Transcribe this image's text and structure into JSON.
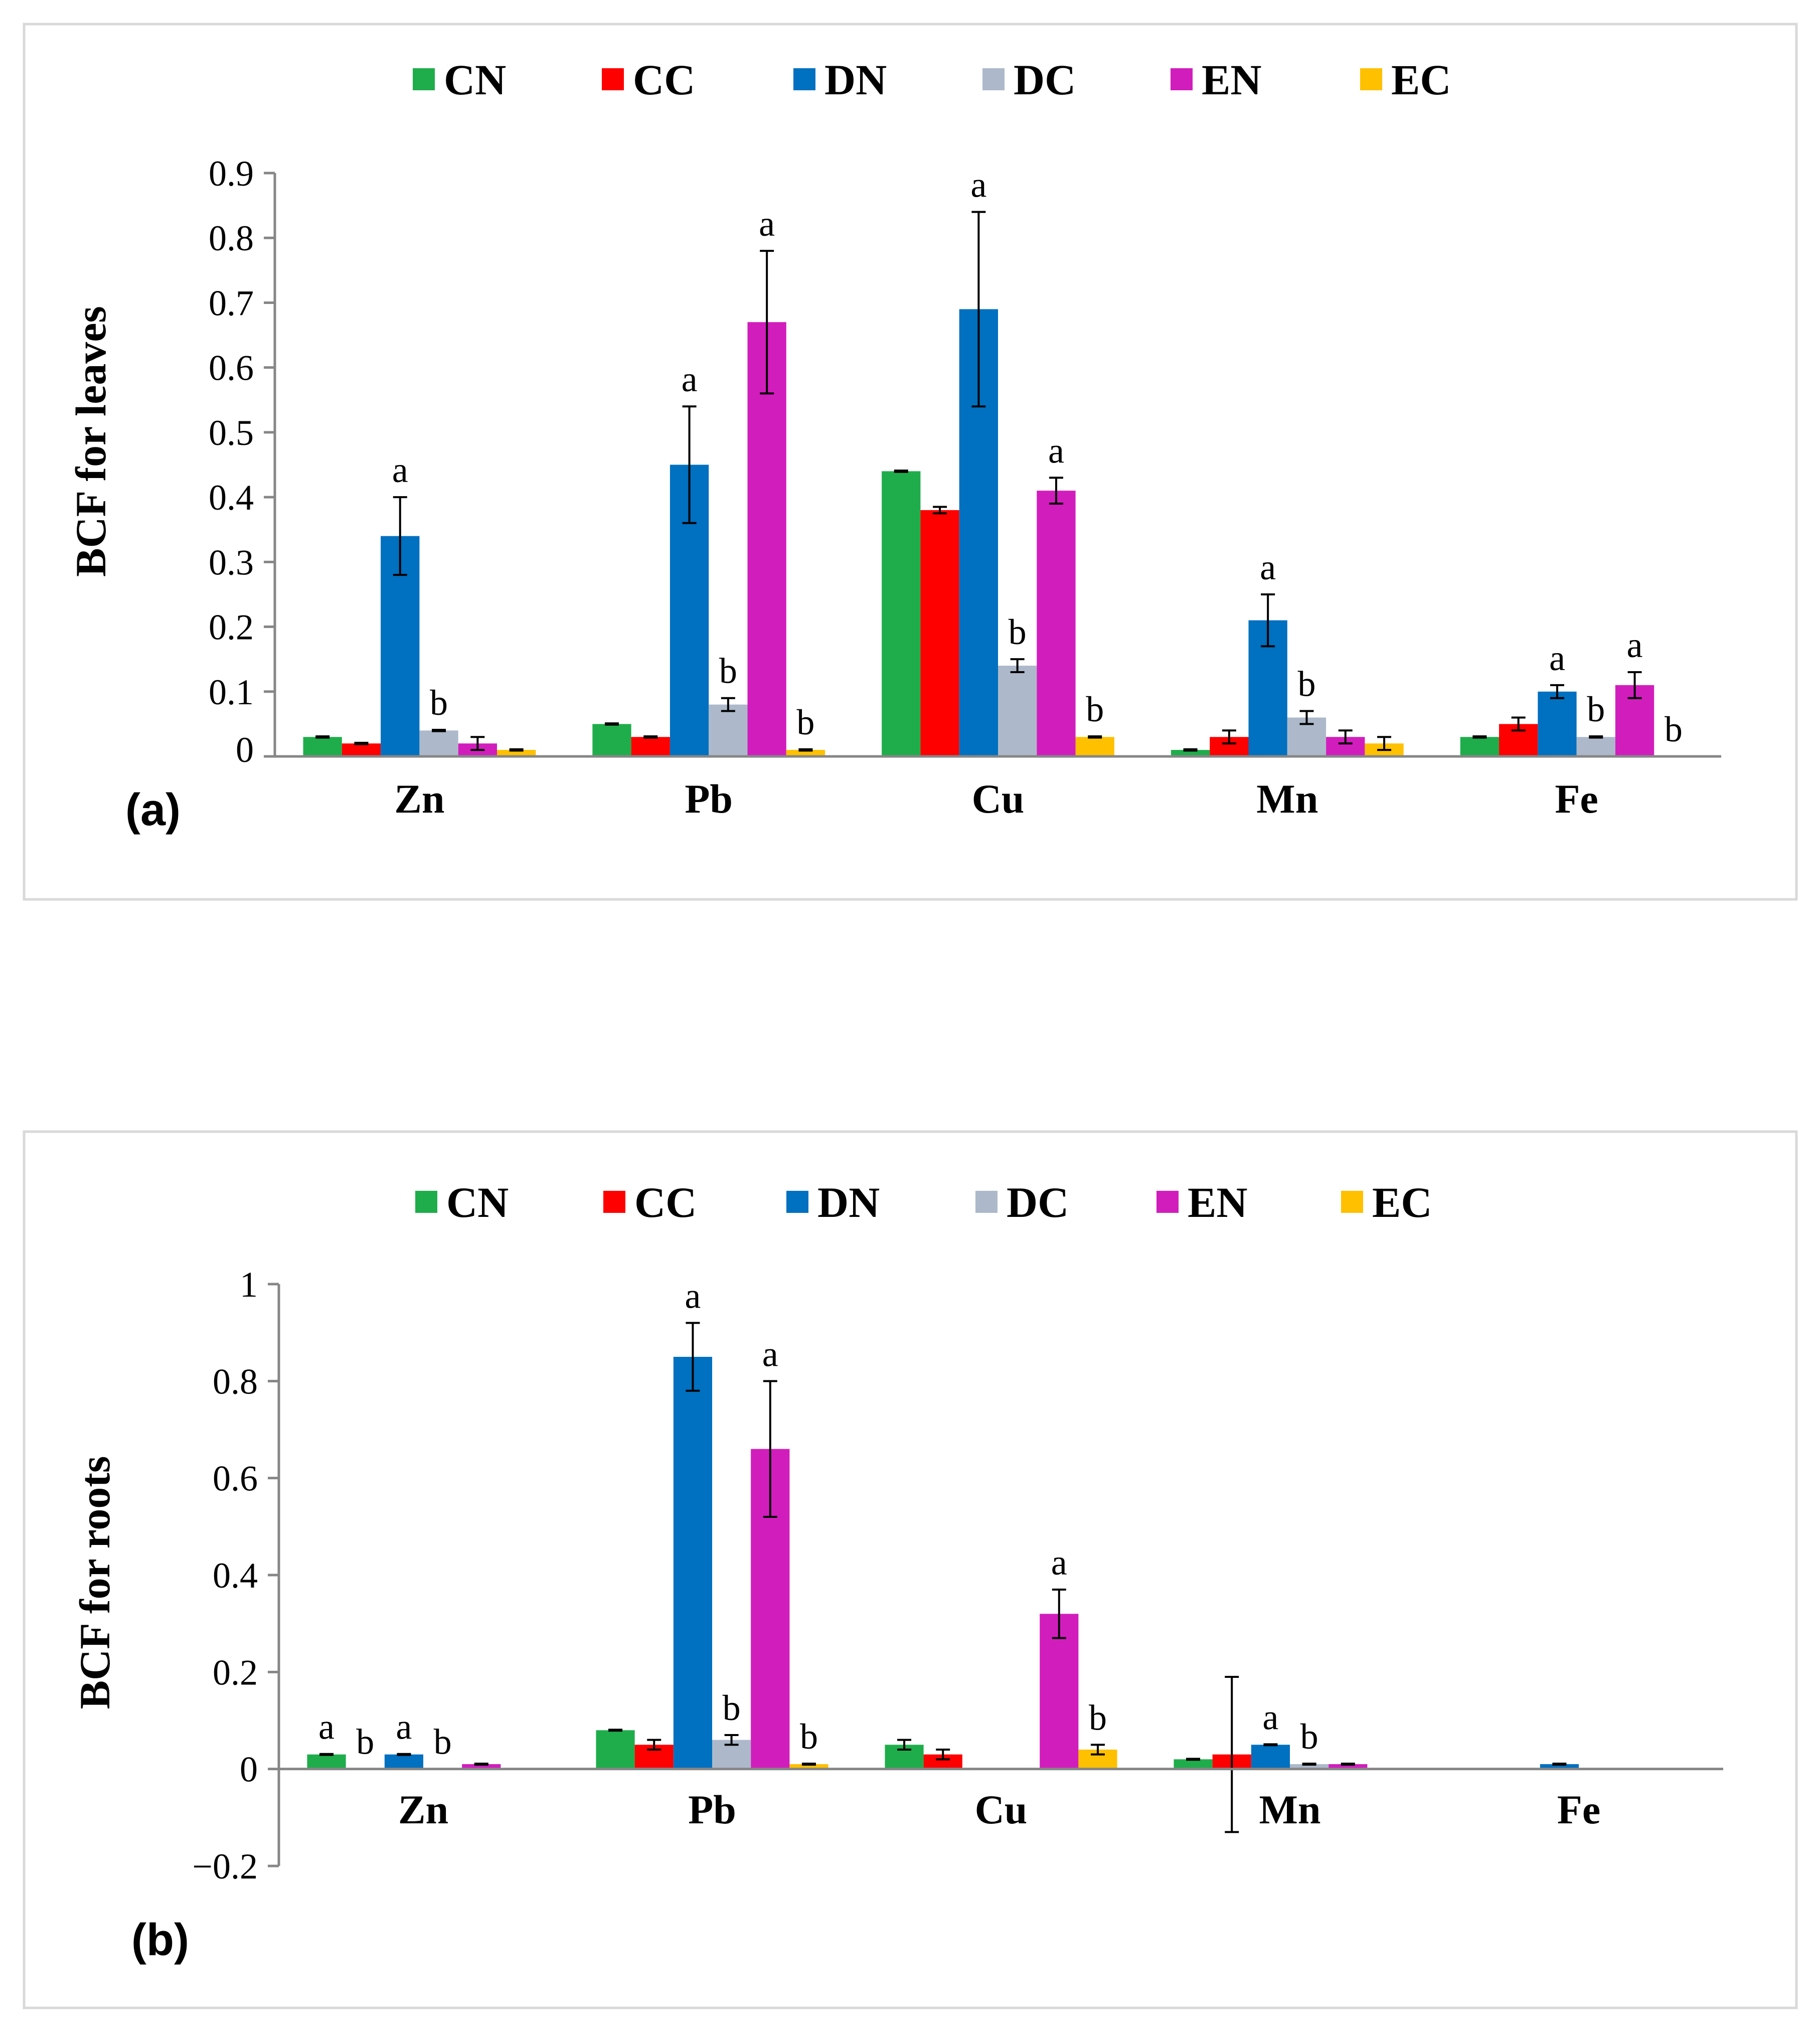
{
  "colors": {
    "CN": "#1fad4b",
    "CC": "#ff0000",
    "DN": "#0070c0",
    "DC": "#adb9ca",
    "EN": "#d21dbd",
    "EC": "#ffc000",
    "axis": "#868686",
    "frame": "#d9d9d9",
    "text": "#000000"
  },
  "chart_data": [
    {
      "type": "bar",
      "panel_label": "(a)",
      "ylabel": "BCF for leaves",
      "ylim": [
        0,
        0.9
      ],
      "yticks": [
        0,
        0.1,
        0.2,
        0.3,
        0.4,
        0.5,
        0.6,
        0.7,
        0.8,
        0.9
      ],
      "ytick_labels": [
        "0",
        "0.1",
        "0.2",
        "0.3",
        "0.4",
        "0.5",
        "0.6",
        "0.7",
        "0.8",
        "0.9"
      ],
      "legend_placement": "top",
      "categories": [
        "Zn",
        "Pb",
        "Cu",
        "Mn",
        "Fe"
      ],
      "series": [
        {
          "name": "CN",
          "values": [
            0.03,
            0.05,
            0.44,
            0.01,
            0.03
          ],
          "errors": [
            0.001,
            0.001,
            0.001,
            0.001,
            0.001
          ],
          "letters": [
            "",
            "",
            "",
            "",
            ""
          ]
        },
        {
          "name": "CC",
          "values": [
            0.02,
            0.03,
            0.38,
            0.03,
            0.05
          ],
          "errors": [
            0.001,
            0.001,
            0.005,
            0.01,
            0.01
          ],
          "letters": [
            "",
            "",
            "",
            "",
            ""
          ]
        },
        {
          "name": "DN",
          "values": [
            0.34,
            0.45,
            0.69,
            0.21,
            0.1
          ],
          "errors": [
            0.06,
            0.09,
            0.15,
            0.04,
            0.01
          ],
          "letters": [
            "a",
            "a",
            "a",
            "a",
            "a"
          ]
        },
        {
          "name": "DC",
          "values": [
            0.04,
            0.08,
            0.14,
            0.06,
            0.03
          ],
          "errors": [
            0.001,
            0.01,
            0.01,
            0.01,
            0.001
          ],
          "letters": [
            "b",
            "b",
            "b",
            "b",
            "b"
          ]
        },
        {
          "name": "EN",
          "values": [
            0.02,
            0.67,
            0.41,
            0.03,
            0.11
          ],
          "errors": [
            0.01,
            0.11,
            0.02,
            0.01,
            0.02
          ],
          "letters": [
            "",
            "a",
            "a",
            "",
            "a"
          ]
        },
        {
          "name": "EC",
          "values": [
            0.01,
            0.01,
            0.03,
            0.02,
            0.0
          ],
          "errors": [
            0.001,
            0.001,
            0.001,
            0.01,
            0.0
          ],
          "letters": [
            "",
            "b",
            "b",
            "",
            "b"
          ]
        }
      ]
    },
    {
      "type": "bar",
      "panel_label": "(b)",
      "ylabel": "BCF for roots",
      "ylim": [
        -0.2,
        1
      ],
      "yticks": [
        -0.2,
        0,
        0.2,
        0.4,
        0.6,
        0.8,
        1
      ],
      "ytick_labels": [
        "−0.2",
        "0",
        "0.2",
        "0.4",
        "0.6",
        "0.8",
        "1"
      ],
      "legend_placement": "top",
      "categories": [
        "Zn",
        "Pb",
        "Cu",
        "Mn",
        "Fe"
      ],
      "series": [
        {
          "name": "CN",
          "values": [
            0.03,
            0.08,
            0.05,
            0.02,
            0.0
          ],
          "errors": [
            0.001,
            0.001,
            0.01,
            0.001,
            0.0
          ],
          "letters": [
            "a",
            "",
            "",
            "",
            ""
          ]
        },
        {
          "name": "CC",
          "values": [
            0.0,
            0.05,
            0.03,
            0.03,
            0.0
          ],
          "errors": [
            0.0,
            0.01,
            0.01,
            0.16,
            0.0
          ],
          "letters": [
            "b",
            "",
            "",
            "",
            ""
          ]
        },
        {
          "name": "DN",
          "values": [
            0.03,
            0.85,
            0.0,
            0.05,
            0.01
          ],
          "errors": [
            0.001,
            0.07,
            0.0,
            0.001,
            0.001
          ],
          "letters": [
            "a",
            "a",
            "",
            "a",
            ""
          ]
        },
        {
          "name": "DC",
          "values": [
            0.0,
            0.06,
            0.0,
            0.01,
            0.0
          ],
          "errors": [
            0.0,
            0.01,
            0.0,
            0.001,
            0.0
          ],
          "letters": [
            "b",
            "b",
            "",
            "b",
            ""
          ]
        },
        {
          "name": "EN",
          "values": [
            0.01,
            0.66,
            0.32,
            0.01,
            0.0
          ],
          "errors": [
            0.001,
            0.14,
            0.05,
            0.001,
            0.0
          ],
          "letters": [
            "",
            "a",
            "a",
            "",
            ""
          ]
        },
        {
          "name": "EC",
          "values": [
            0.0,
            0.01,
            0.04,
            0.0,
            0.0
          ],
          "errors": [
            0.0,
            0.001,
            0.01,
            0.0,
            0.0
          ],
          "letters": [
            "",
            "b",
            "b",
            "",
            ""
          ]
        }
      ]
    }
  ]
}
